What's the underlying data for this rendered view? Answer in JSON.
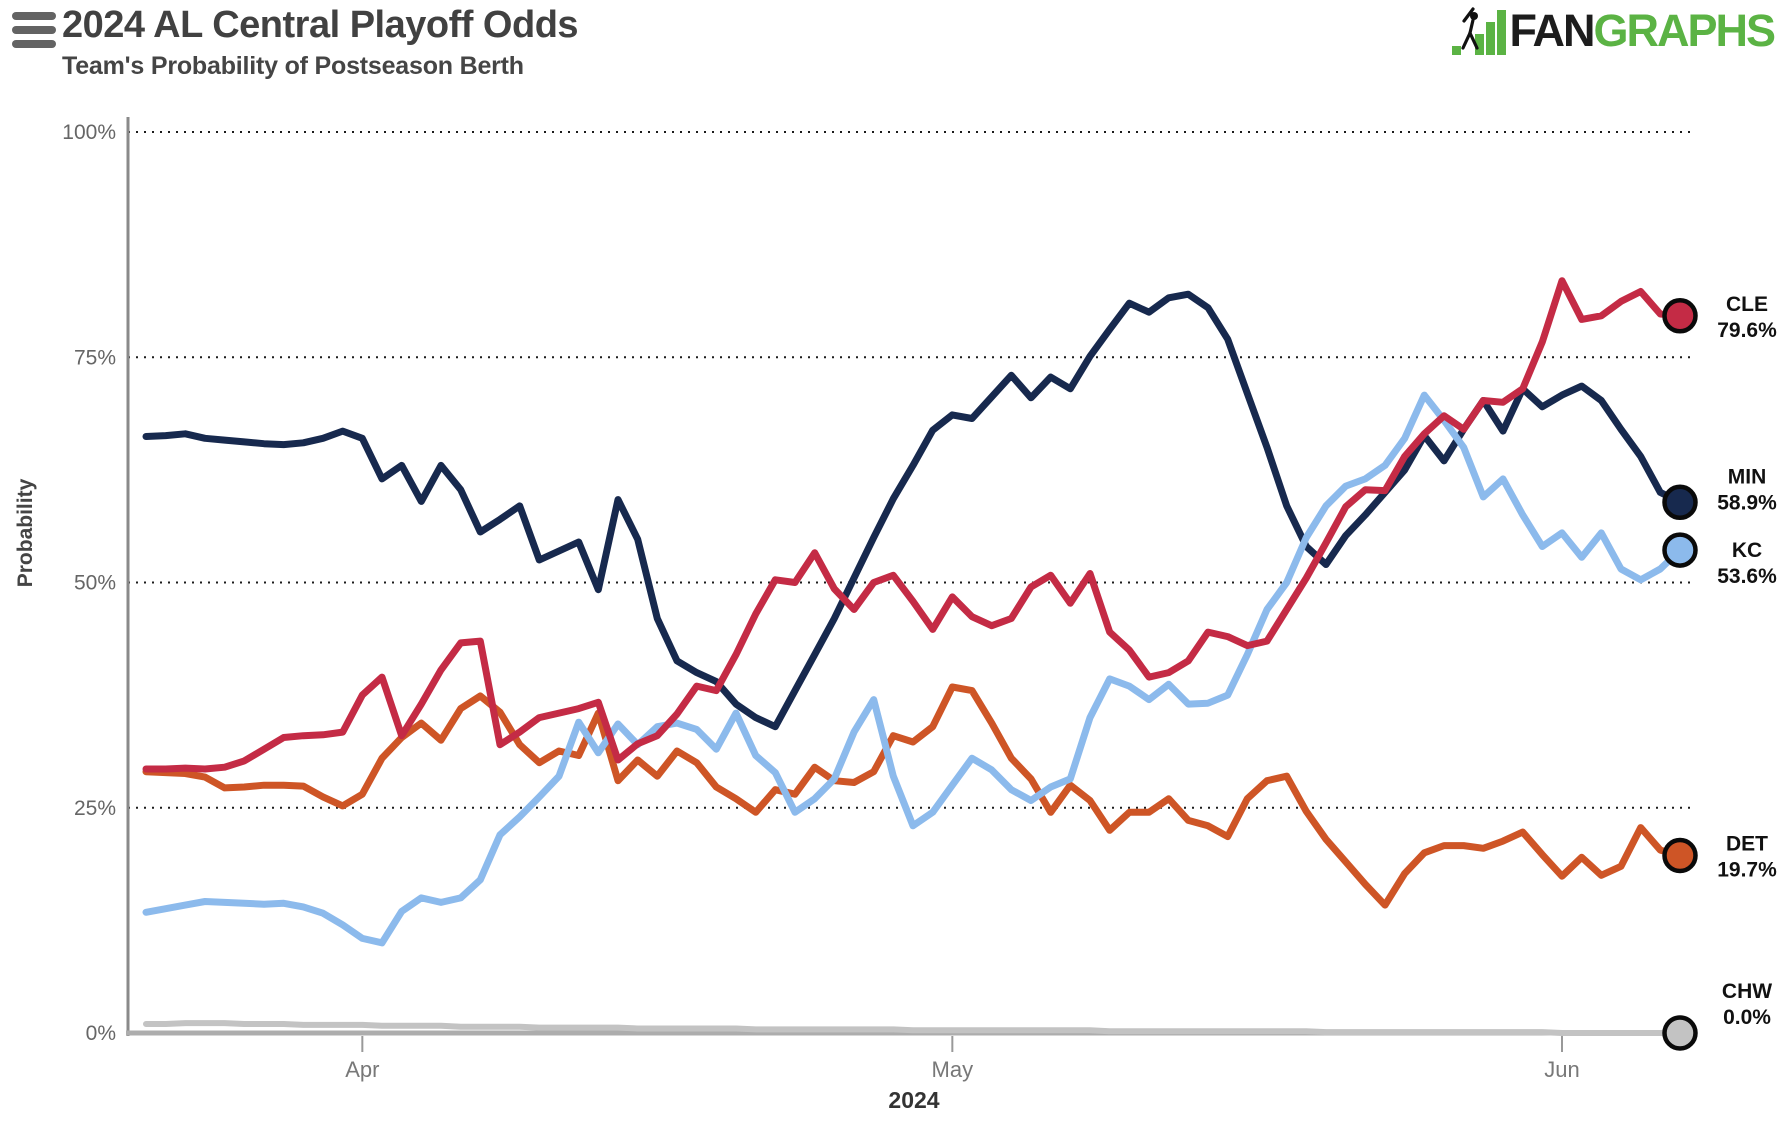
{
  "menu": {
    "icon": "hamburger-menu-icon"
  },
  "logo": {
    "fan": "FAN",
    "graphs": "GRAPHS",
    "green": "#5bb344",
    "black": "#1d1d1d"
  },
  "chart_data": {
    "type": "line",
    "title": "2024 AL Central Playoff Odds",
    "subtitle": "Team's Probability of Postseason Berth",
    "ylabel": "Probability",
    "year_label": "2024",
    "ylim": [
      0,
      100
    ],
    "grid": "horizontal-dotted",
    "legend_position": "right-edge-labels",
    "x_range": [
      "Mar 21",
      "Jun 7"
    ],
    "yticks": [
      {
        "value": 0,
        "label": "0%"
      },
      {
        "value": 25,
        "label": "25%"
      },
      {
        "value": 50,
        "label": "50%"
      },
      {
        "value": 75,
        "label": "75%"
      },
      {
        "value": 100,
        "label": "100%"
      }
    ],
    "month_ticks": [
      {
        "index": 11,
        "label": "Apr"
      },
      {
        "index": 41,
        "label": "May"
      },
      {
        "index": 72,
        "label": "Jun"
      }
    ],
    "series": [
      {
        "name": "CHW",
        "end_label": "0.0%",
        "color": "#c3c3c3",
        "label_offset": -30,
        "values": [
          1.0,
          1.0,
          1.1,
          1.1,
          1.1,
          1.0,
          1.0,
          1.0,
          0.9,
          0.9,
          0.9,
          0.9,
          0.8,
          0.8,
          0.8,
          0.8,
          0.7,
          0.7,
          0.7,
          0.7,
          0.6,
          0.6,
          0.6,
          0.6,
          0.6,
          0.5,
          0.5,
          0.5,
          0.5,
          0.5,
          0.5,
          0.4,
          0.4,
          0.4,
          0.4,
          0.4,
          0.4,
          0.4,
          0.4,
          0.3,
          0.3,
          0.3,
          0.3,
          0.3,
          0.3,
          0.3,
          0.3,
          0.3,
          0.3,
          0.2,
          0.2,
          0.2,
          0.2,
          0.2,
          0.2,
          0.2,
          0.2,
          0.2,
          0.2,
          0.2,
          0.1,
          0.1,
          0.1,
          0.1,
          0.1,
          0.1,
          0.1,
          0.1,
          0.1,
          0.1,
          0.1,
          0.1,
          0.0,
          0.0,
          0.0,
          0.0,
          0.0,
          0.0,
          0.0
        ]
      },
      {
        "name": "DET",
        "end_label": "19.7%",
        "color": "#ce5526",
        "label_offset": 0,
        "values": [
          29.0,
          28.9,
          28.8,
          28.4,
          27.2,
          27.3,
          27.5,
          27.5,
          27.4,
          26.2,
          25.2,
          26.5,
          30.5,
          32.8,
          34.4,
          32.5,
          36.0,
          37.4,
          35.6,
          32.0,
          30.0,
          31.3,
          30.8,
          35.5,
          28.0,
          30.3,
          28.5,
          31.3,
          30.0,
          27.3,
          26.0,
          24.5,
          27.0,
          26.5,
          29.5,
          28.0,
          27.8,
          29.0,
          33.0,
          32.3,
          34.0,
          38.4,
          38.0,
          34.4,
          30.5,
          28.2,
          24.5,
          27.5,
          25.8,
          22.5,
          24.5,
          24.5,
          26.0,
          23.6,
          23.0,
          21.8,
          26.0,
          28.0,
          28.5,
          24.6,
          21.5,
          19.0,
          16.5,
          14.2,
          17.7,
          20.0,
          20.8,
          20.8,
          20.5,
          21.3,
          22.3,
          19.8,
          17.4,
          19.5,
          17.5,
          18.5,
          22.8,
          20.3,
          19.7
        ]
      },
      {
        "name": "MIN",
        "end_label": "58.9%",
        "color": "#17294e",
        "label_offset": -14,
        "values": [
          66.2,
          66.3,
          66.5,
          66.0,
          65.8,
          65.6,
          65.4,
          65.3,
          65.5,
          66.0,
          66.8,
          66.0,
          61.5,
          63.0,
          59.0,
          63.0,
          60.3,
          55.6,
          57.0,
          58.5,
          52.5,
          53.5,
          54.5,
          49.2,
          59.2,
          54.8,
          46.0,
          41.3,
          40.0,
          39.0,
          36.5,
          35.0,
          34.0,
          38.0,
          42.0,
          46.0,
          50.5,
          55.0,
          59.3,
          63.0,
          66.9,
          68.6,
          68.2,
          70.6,
          73.0,
          70.5,
          72.8,
          71.5,
          75.1,
          78.1,
          81.0,
          80.0,
          81.6,
          82.0,
          80.5,
          77.0,
          71.0,
          65.0,
          58.5,
          54.0,
          52.0,
          55.2,
          57.5,
          60.0,
          62.5,
          66.3,
          63.5,
          67.0,
          70.2,
          66.8,
          71.5,
          69.5,
          70.8,
          71.8,
          70.2,
          67.0,
          64.0,
          60.0,
          58.9
        ]
      },
      {
        "name": "KC",
        "end_label": "53.6%",
        "color": "#8cbaec",
        "label_offset": 12,
        "values": [
          13.4,
          13.8,
          14.2,
          14.6,
          14.5,
          14.4,
          14.3,
          14.4,
          14.0,
          13.3,
          12.0,
          10.5,
          10.0,
          13.5,
          15.0,
          14.5,
          15.0,
          17.0,
          22.0,
          24.0,
          26.2,
          28.5,
          34.5,
          31.1,
          34.3,
          32.0,
          34.0,
          34.4,
          33.7,
          31.5,
          35.5,
          30.8,
          28.9,
          24.5,
          26.0,
          28.2,
          33.4,
          37.0,
          28.5,
          23.0,
          24.5,
          27.5,
          30.5,
          29.2,
          27.0,
          25.8,
          27.3,
          28.2,
          35.0,
          39.3,
          38.5,
          37.0,
          38.7,
          36.5,
          36.6,
          37.5,
          42.0,
          47.0,
          50.0,
          55.0,
          58.5,
          60.7,
          61.5,
          63.0,
          66.0,
          70.8,
          68.0,
          65.0,
          59.5,
          61.5,
          57.5,
          54.0,
          55.5,
          52.8,
          55.5,
          51.5,
          50.3,
          51.5,
          53.6
        ]
      },
      {
        "name": "CLE",
        "end_label": "79.6%",
        "color": "#c42b45",
        "label_offset": 0,
        "values": [
          29.3,
          29.3,
          29.4,
          29.3,
          29.5,
          30.2,
          31.5,
          32.8,
          33.0,
          33.1,
          33.4,
          37.5,
          39.5,
          33.0,
          36.5,
          40.3,
          43.3,
          43.5,
          32.0,
          33.4,
          35.0,
          35.5,
          36.0,
          36.7,
          30.3,
          32.1,
          33.0,
          35.4,
          38.5,
          38.0,
          42.0,
          46.5,
          50.3,
          50.0,
          53.3,
          49.3,
          47.0,
          50.0,
          50.8,
          47.9,
          44.8,
          48.4,
          46.2,
          45.2,
          46.0,
          49.5,
          50.8,
          47.7,
          51.0,
          44.5,
          42.5,
          39.5,
          40.0,
          41.3,
          44.5,
          44.0,
          43.0,
          43.5,
          47.0,
          50.5,
          54.4,
          58.4,
          60.3,
          60.2,
          64.0,
          66.5,
          68.5,
          67.0,
          70.2,
          70.0,
          71.5,
          76.7,
          83.5,
          79.2,
          79.6,
          81.2,
          82.3,
          79.8,
          79.6
        ]
      }
    ],
    "style": {
      "axis_color": "#8a8a8a",
      "xaxis_color": "#adadad",
      "grid_color": "#1c1c1c",
      "tick_text_color": "#666666",
      "month_text_color": "#787878",
      "year_text_color": "#333333",
      "ylabel_color": "#444444",
      "label_text_color": "#111111",
      "marker_stroke": "#0a0a0a"
    }
  }
}
